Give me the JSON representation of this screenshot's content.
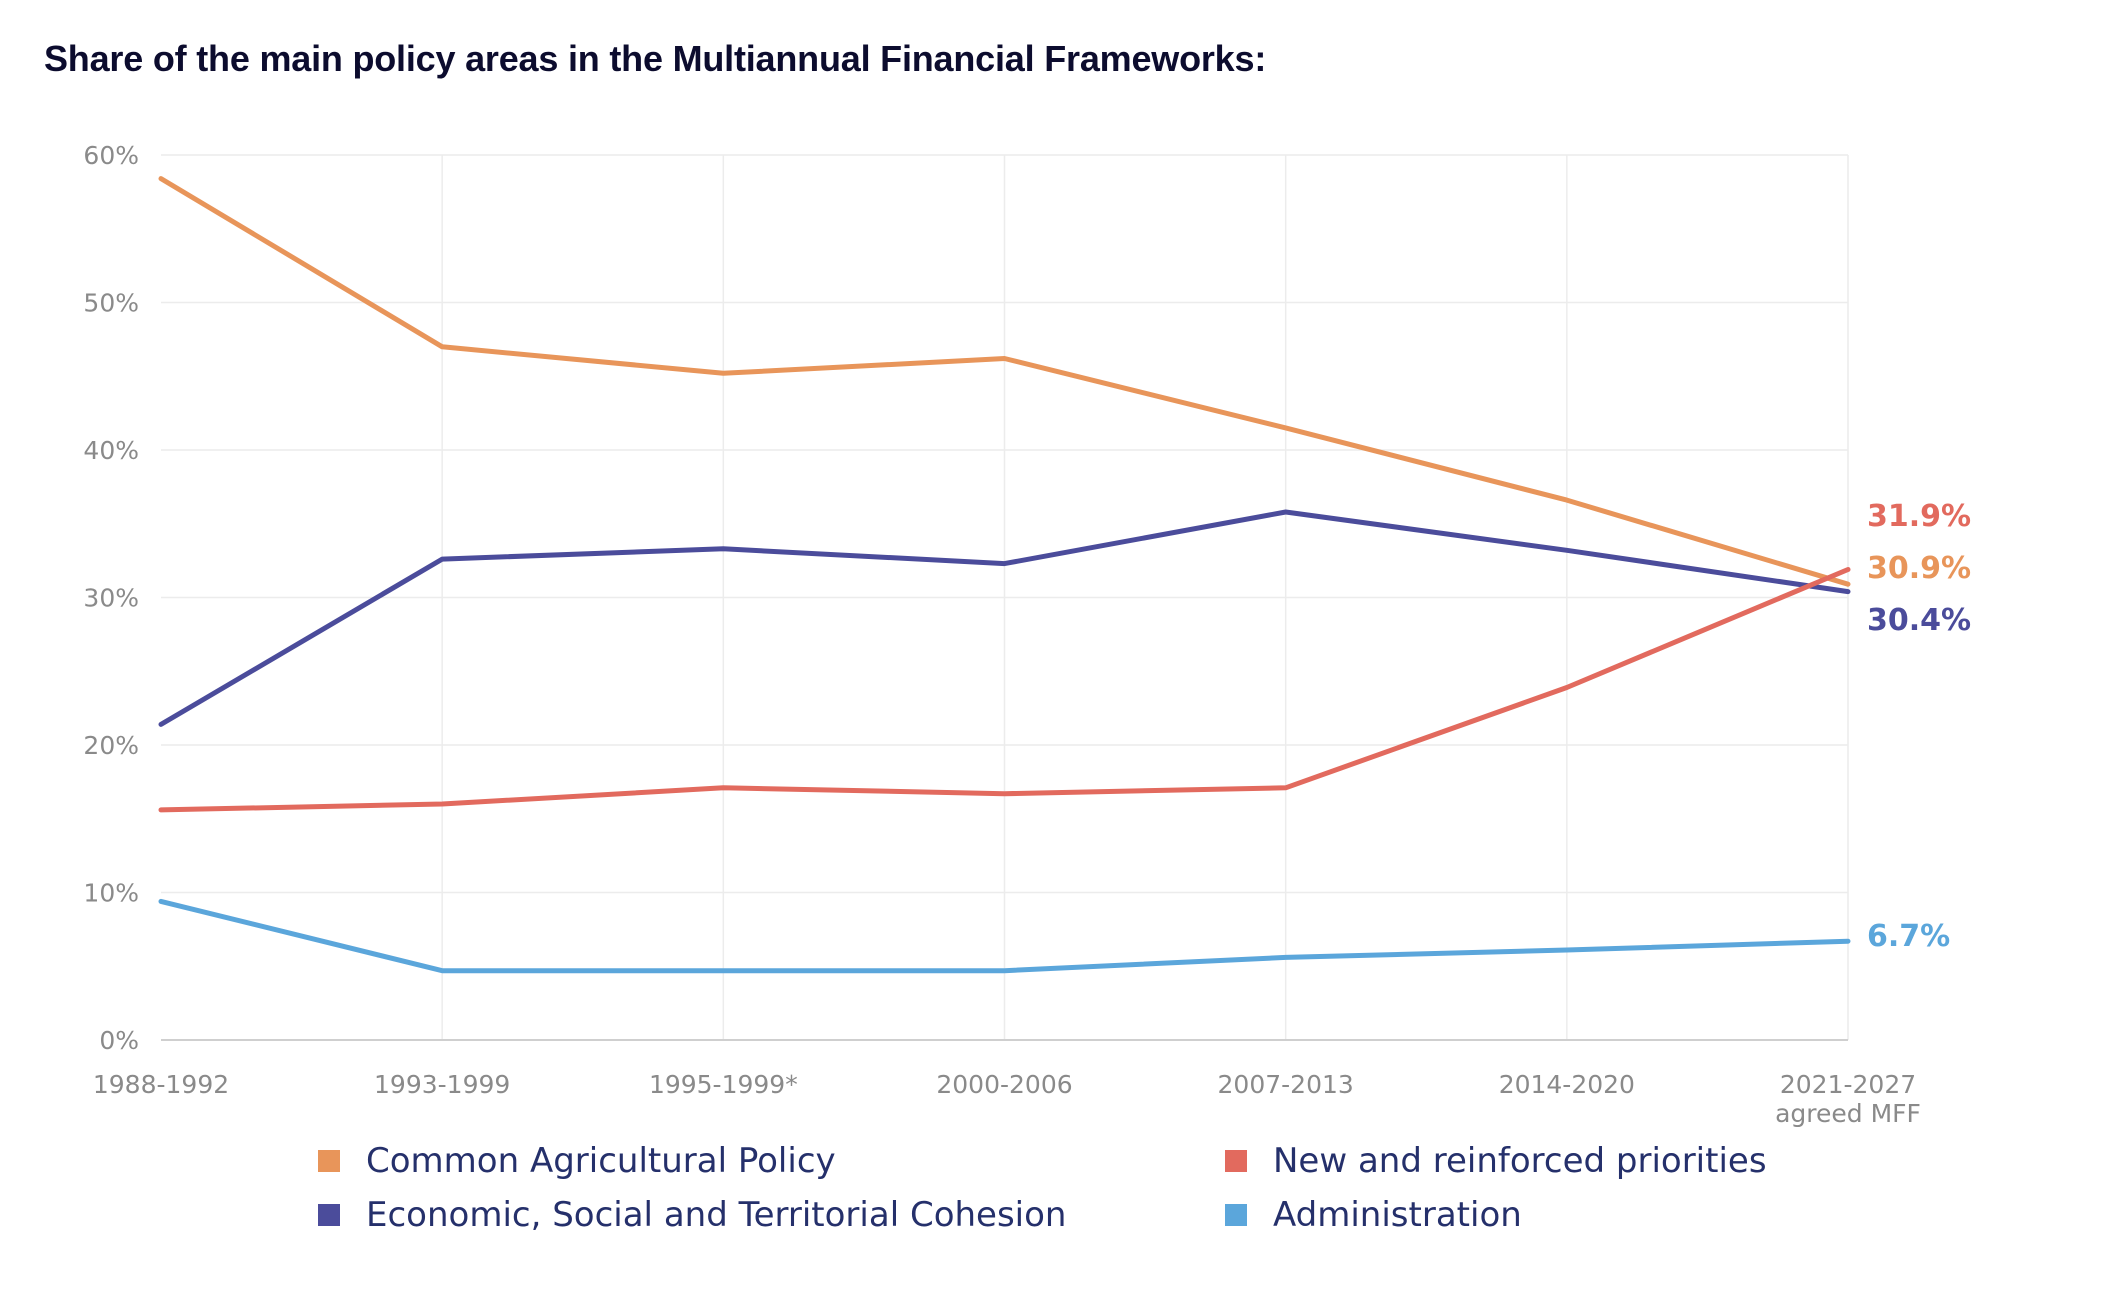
{
  "title": "Share of the main policy areas in the Multiannual Financial Frameworks:",
  "chart_data": {
    "type": "line",
    "title": "Share of the main policy areas in the Multiannual Financial Frameworks:",
    "categories": [
      "1988-1992",
      "1993-1999",
      "1995-1999*",
      "2000-2006",
      "2007-2013",
      "2014-2020",
      "2021-2027"
    ],
    "last_category_sub": "agreed MFF",
    "y_ticks": [
      "0%",
      "10%",
      "20%",
      "30%",
      "40%",
      "50%",
      "60%"
    ],
    "ylim": [
      0,
      60
    ],
    "grid": true,
    "legend_position": "bottom",
    "series": [
      {
        "name": "Common Agricultural Policy",
        "color": "#e8955a",
        "values": [
          58.4,
          47.0,
          45.2,
          46.2,
          41.5,
          36.6,
          30.9
        ],
        "end_label": "30.9%"
      },
      {
        "name": "Economic, Social and Territorial Cohesion",
        "color": "#4b4c9b",
        "values": [
          21.4,
          32.6,
          33.3,
          32.3,
          35.8,
          33.2,
          30.4
        ],
        "end_label": "30.4%"
      },
      {
        "name": "New and reinforced priorities",
        "color": "#e26a5e",
        "values": [
          15.6,
          16.0,
          17.1,
          16.7,
          17.1,
          23.9,
          31.9
        ],
        "end_label": "31.9%"
      },
      {
        "name": "Administration",
        "color": "#5ba6db",
        "values": [
          9.4,
          4.7,
          4.7,
          4.7,
          5.6,
          6.1,
          6.7
        ],
        "end_label": "6.7%"
      }
    ]
  },
  "legend": [
    {
      "label": "Common Agricultural Policy",
      "color": "#e8955a"
    },
    {
      "label": "New and reinforced priorities",
      "color": "#e26a5e"
    },
    {
      "label": "Economic, Social and Territorial Cohesion",
      "color": "#4b4c9b"
    },
    {
      "label": "Administration",
      "color": "#5ba6db"
    }
  ]
}
